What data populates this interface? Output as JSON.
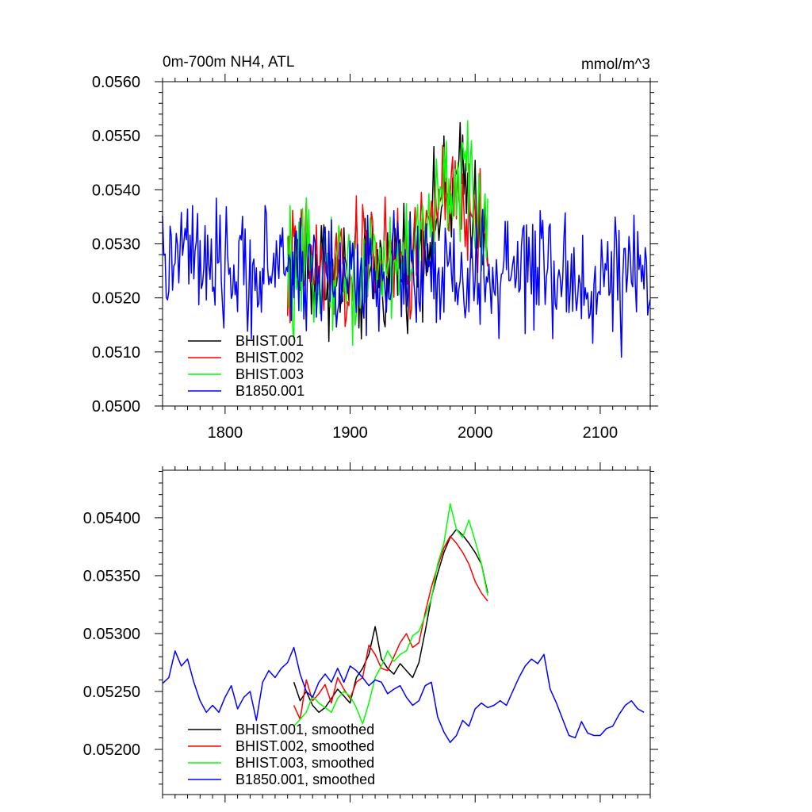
{
  "chart_data": [
    {
      "type": "line",
      "title": "0m-700m NH4, ATL",
      "units": "mmol/m^3",
      "xlim": [
        1750,
        2140
      ],
      "ylim": [
        0.05,
        0.056
      ],
      "x_ticks": [
        1800,
        1900,
        2000,
        2100
      ],
      "x_tick_labels": [
        "1800",
        "1900",
        "2000",
        "2100"
      ],
      "y_ticks": [
        0.05,
        0.051,
        0.052,
        0.053,
        0.054,
        0.055,
        0.056
      ],
      "y_tick_labels": [
        "0.0500",
        "0.0510",
        "0.0520",
        "0.0530",
        "0.0540",
        "0.0550",
        "0.0560"
      ],
      "legend_position": "bottom-left",
      "grid": false,
      "series": [
        {
          "name": "BHIST.001",
          "color": "#000000",
          "x": [
            1850,
            1860,
            1870,
            1880,
            1890,
            1900,
            1910,
            1920,
            1930,
            1940,
            1950,
            1960,
            1970,
            1980,
            1990,
            2000,
            2010
          ],
          "y": [
            0.0524,
            0.0527,
            0.0525,
            0.0526,
            0.0522,
            0.0525,
            0.0522,
            0.0527,
            0.0524,
            0.0528,
            0.0528,
            0.0531,
            0.0536,
            0.0538,
            0.0542,
            0.0537,
            0.0534
          ]
        },
        {
          "name": "BHIST.002",
          "color": "#ff0000",
          "x": [
            1850,
            1860,
            1870,
            1880,
            1890,
            1900,
            1910,
            1920,
            1930,
            1940,
            1950,
            1960,
            1970,
            1980,
            1990,
            2000,
            2010
          ],
          "y": [
            0.0523,
            0.0529,
            0.0527,
            0.0522,
            0.0526,
            0.0522,
            0.0528,
            0.053,
            0.0526,
            0.0527,
            0.0526,
            0.0534,
            0.0538,
            0.0537,
            0.0536,
            0.0535,
            0.0533
          ]
        },
        {
          "name": "BHIST.003",
          "color": "#00ff00",
          "x": [
            1850,
            1860,
            1870,
            1880,
            1890,
            1900,
            1910,
            1920,
            1930,
            1940,
            1950,
            1960,
            1970,
            1980,
            1990,
            2000,
            2010
          ],
          "y": [
            0.0524,
            0.0522,
            0.0526,
            0.0527,
            0.0525,
            0.0523,
            0.0524,
            0.0527,
            0.0526,
            0.0526,
            0.053,
            0.0531,
            0.0537,
            0.0541,
            0.0543,
            0.0536,
            0.0534
          ]
        },
        {
          "name": "B1850.001",
          "color": "#0000ff",
          "x": [
            1750,
            1760,
            1770,
            1780,
            1790,
            1800,
            1810,
            1820,
            1830,
            1840,
            1850,
            1860,
            1870,
            1880,
            1890,
            1900,
            1910,
            1920,
            1930,
            1940,
            1950,
            1960,
            1970,
            1980,
            1990,
            2000,
            2010,
            2020,
            2030,
            2040,
            2050,
            2060,
            2070,
            2080,
            2090,
            2100,
            2110,
            2120,
            2130,
            2140
          ],
          "y": [
            0.0525,
            0.0527,
            0.0529,
            0.0526,
            0.0522,
            0.0527,
            0.0523,
            0.0526,
            0.0524,
            0.0527,
            0.0526,
            0.0525,
            0.0525,
            0.0524,
            0.0524,
            0.0523,
            0.0525,
            0.0525,
            0.0524,
            0.0526,
            0.0525,
            0.0524,
            0.0522,
            0.0524,
            0.0522,
            0.0524,
            0.0523,
            0.0524,
            0.0524,
            0.0525,
            0.0525,
            0.0522,
            0.0524,
            0.0523,
            0.0522,
            0.0523,
            0.0524,
            0.0524,
            0.0523,
            0.0522
          ]
        }
      ]
    },
    {
      "type": "line",
      "xlim": [
        1750,
        2140
      ],
      "ylim": [
        0.05161,
        0.05441
      ],
      "x_ticks": [
        1800,
        1900,
        2000,
        2100
      ],
      "y_ticks": [
        0.052,
        0.0525,
        0.053,
        0.0535,
        0.054
      ],
      "y_tick_labels": [
        "0.05200",
        "0.05250",
        "0.05300",
        "0.05350",
        "0.05400"
      ],
      "legend_position": "bottom-left",
      "grid": false,
      "series": [
        {
          "name": "BHIST.001, smoothed",
          "color": "#000000",
          "x": [
            1855,
            1860,
            1865,
            1870,
            1875,
            1880,
            1885,
            1890,
            1895,
            1900,
            1905,
            1910,
            1915,
            1920,
            1925,
            1930,
            1935,
            1940,
            1945,
            1950,
            1955,
            1960,
            1965,
            1970,
            1975,
            1980,
            1985,
            1990,
            1995,
            2000,
            2005,
            2010
          ],
          "y": [
            0.05258,
            0.05242,
            0.0525,
            0.05238,
            0.05232,
            0.05236,
            0.05244,
            0.05252,
            0.05246,
            0.0524,
            0.05262,
            0.0527,
            0.05282,
            0.05306,
            0.05278,
            0.0527,
            0.05265,
            0.05274,
            0.05268,
            0.05262,
            0.05275,
            0.05302,
            0.05331,
            0.05352,
            0.0537,
            0.05383,
            0.0539,
            0.05385,
            0.05378,
            0.0537,
            0.0536,
            0.05335
          ]
        },
        {
          "name": "BHIST.002, smoothed",
          "color": "#ff0000",
          "x": [
            1855,
            1860,
            1865,
            1870,
            1875,
            1880,
            1885,
            1890,
            1895,
            1900,
            1905,
            1910,
            1915,
            1920,
            1925,
            1930,
            1935,
            1940,
            1945,
            1950,
            1955,
            1960,
            1965,
            1970,
            1975,
            1980,
            1985,
            1990,
            1995,
            2000,
            2005,
            2010
          ],
          "y": [
            0.05238,
            0.05226,
            0.0526,
            0.05242,
            0.05248,
            0.05256,
            0.0524,
            0.05262,
            0.05252,
            0.05244,
            0.05258,
            0.05262,
            0.0529,
            0.05282,
            0.0527,
            0.05268,
            0.0528,
            0.05292,
            0.053,
            0.05288,
            0.05292,
            0.05318,
            0.0534,
            0.05358,
            0.05374,
            0.05384,
            0.05378,
            0.0537,
            0.0536,
            0.05345,
            0.05335,
            0.05328
          ]
        },
        {
          "name": "BHIST.003, smoothed",
          "color": "#00ff00",
          "x": [
            1855,
            1860,
            1865,
            1870,
            1875,
            1880,
            1885,
            1890,
            1895,
            1900,
            1905,
            1910,
            1915,
            1920,
            1925,
            1930,
            1935,
            1940,
            1945,
            1950,
            1955,
            1960,
            1965,
            1970,
            1975,
            1980,
            1985,
            1990,
            1995,
            2000,
            2005,
            2010
          ],
          "y": [
            0.0522,
            0.05226,
            0.05232,
            0.05246,
            0.0524,
            0.05236,
            0.05232,
            0.05244,
            0.0525,
            0.05246,
            0.05236,
            0.05222,
            0.0524,
            0.05262,
            0.05272,
            0.05285,
            0.05276,
            0.05282,
            0.05285,
            0.05298,
            0.05302,
            0.05315,
            0.0533,
            0.0536,
            0.05378,
            0.05412,
            0.0539,
            0.05383,
            0.05398,
            0.0538,
            0.0536,
            0.05333
          ]
        },
        {
          "name": "B1850.001, smoothed",
          "color": "#0000ff",
          "x": [
            1750,
            1755,
            1760,
            1765,
            1770,
            1775,
            1780,
            1785,
            1790,
            1795,
            1800,
            1805,
            1810,
            1815,
            1820,
            1825,
            1830,
            1835,
            1840,
            1845,
            1850,
            1855,
            1860,
            1865,
            1870,
            1875,
            1880,
            1885,
            1890,
            1895,
            1900,
            1905,
            1910,
            1915,
            1920,
            1925,
            1930,
            1935,
            1940,
            1945,
            1950,
            1955,
            1960,
            1965,
            1970,
            1975,
            1980,
            1985,
            1990,
            1995,
            2000,
            2005,
            2010,
            2015,
            2020,
            2025,
            2030,
            2035,
            2040,
            2045,
            2050,
            2055,
            2060,
            2065,
            2070,
            2075,
            2080,
            2085,
            2090,
            2095,
            2100,
            2105,
            2110,
            2115,
            2120,
            2125,
            2130,
            2135
          ],
          "y": [
            0.05257,
            0.05262,
            0.05285,
            0.05272,
            0.05278,
            0.05258,
            0.05242,
            0.05232,
            0.05238,
            0.05232,
            0.05245,
            0.05255,
            0.05235,
            0.05245,
            0.0525,
            0.05225,
            0.05258,
            0.05268,
            0.05262,
            0.0527,
            0.05275,
            0.05288,
            0.05265,
            0.0525,
            0.05245,
            0.05258,
            0.05265,
            0.05258,
            0.0527,
            0.05258,
            0.05272,
            0.05268,
            0.05262,
            0.05255,
            0.0526,
            0.05258,
            0.05248,
            0.05252,
            0.05255,
            0.05245,
            0.05238,
            0.05242,
            0.05255,
            0.05258,
            0.05228,
            0.05215,
            0.05206,
            0.05212,
            0.05225,
            0.0522,
            0.05235,
            0.0524,
            0.05236,
            0.05238,
            0.05242,
            0.05238,
            0.0525,
            0.05262,
            0.05272,
            0.05278,
            0.05274,
            0.05282,
            0.05252,
            0.0524,
            0.05226,
            0.05212,
            0.0521,
            0.05224,
            0.05214,
            0.05212,
            0.05212,
            0.05218,
            0.0522,
            0.0523,
            0.05238,
            0.05242,
            0.05235,
            0.05232
          ]
        }
      ]
    }
  ]
}
